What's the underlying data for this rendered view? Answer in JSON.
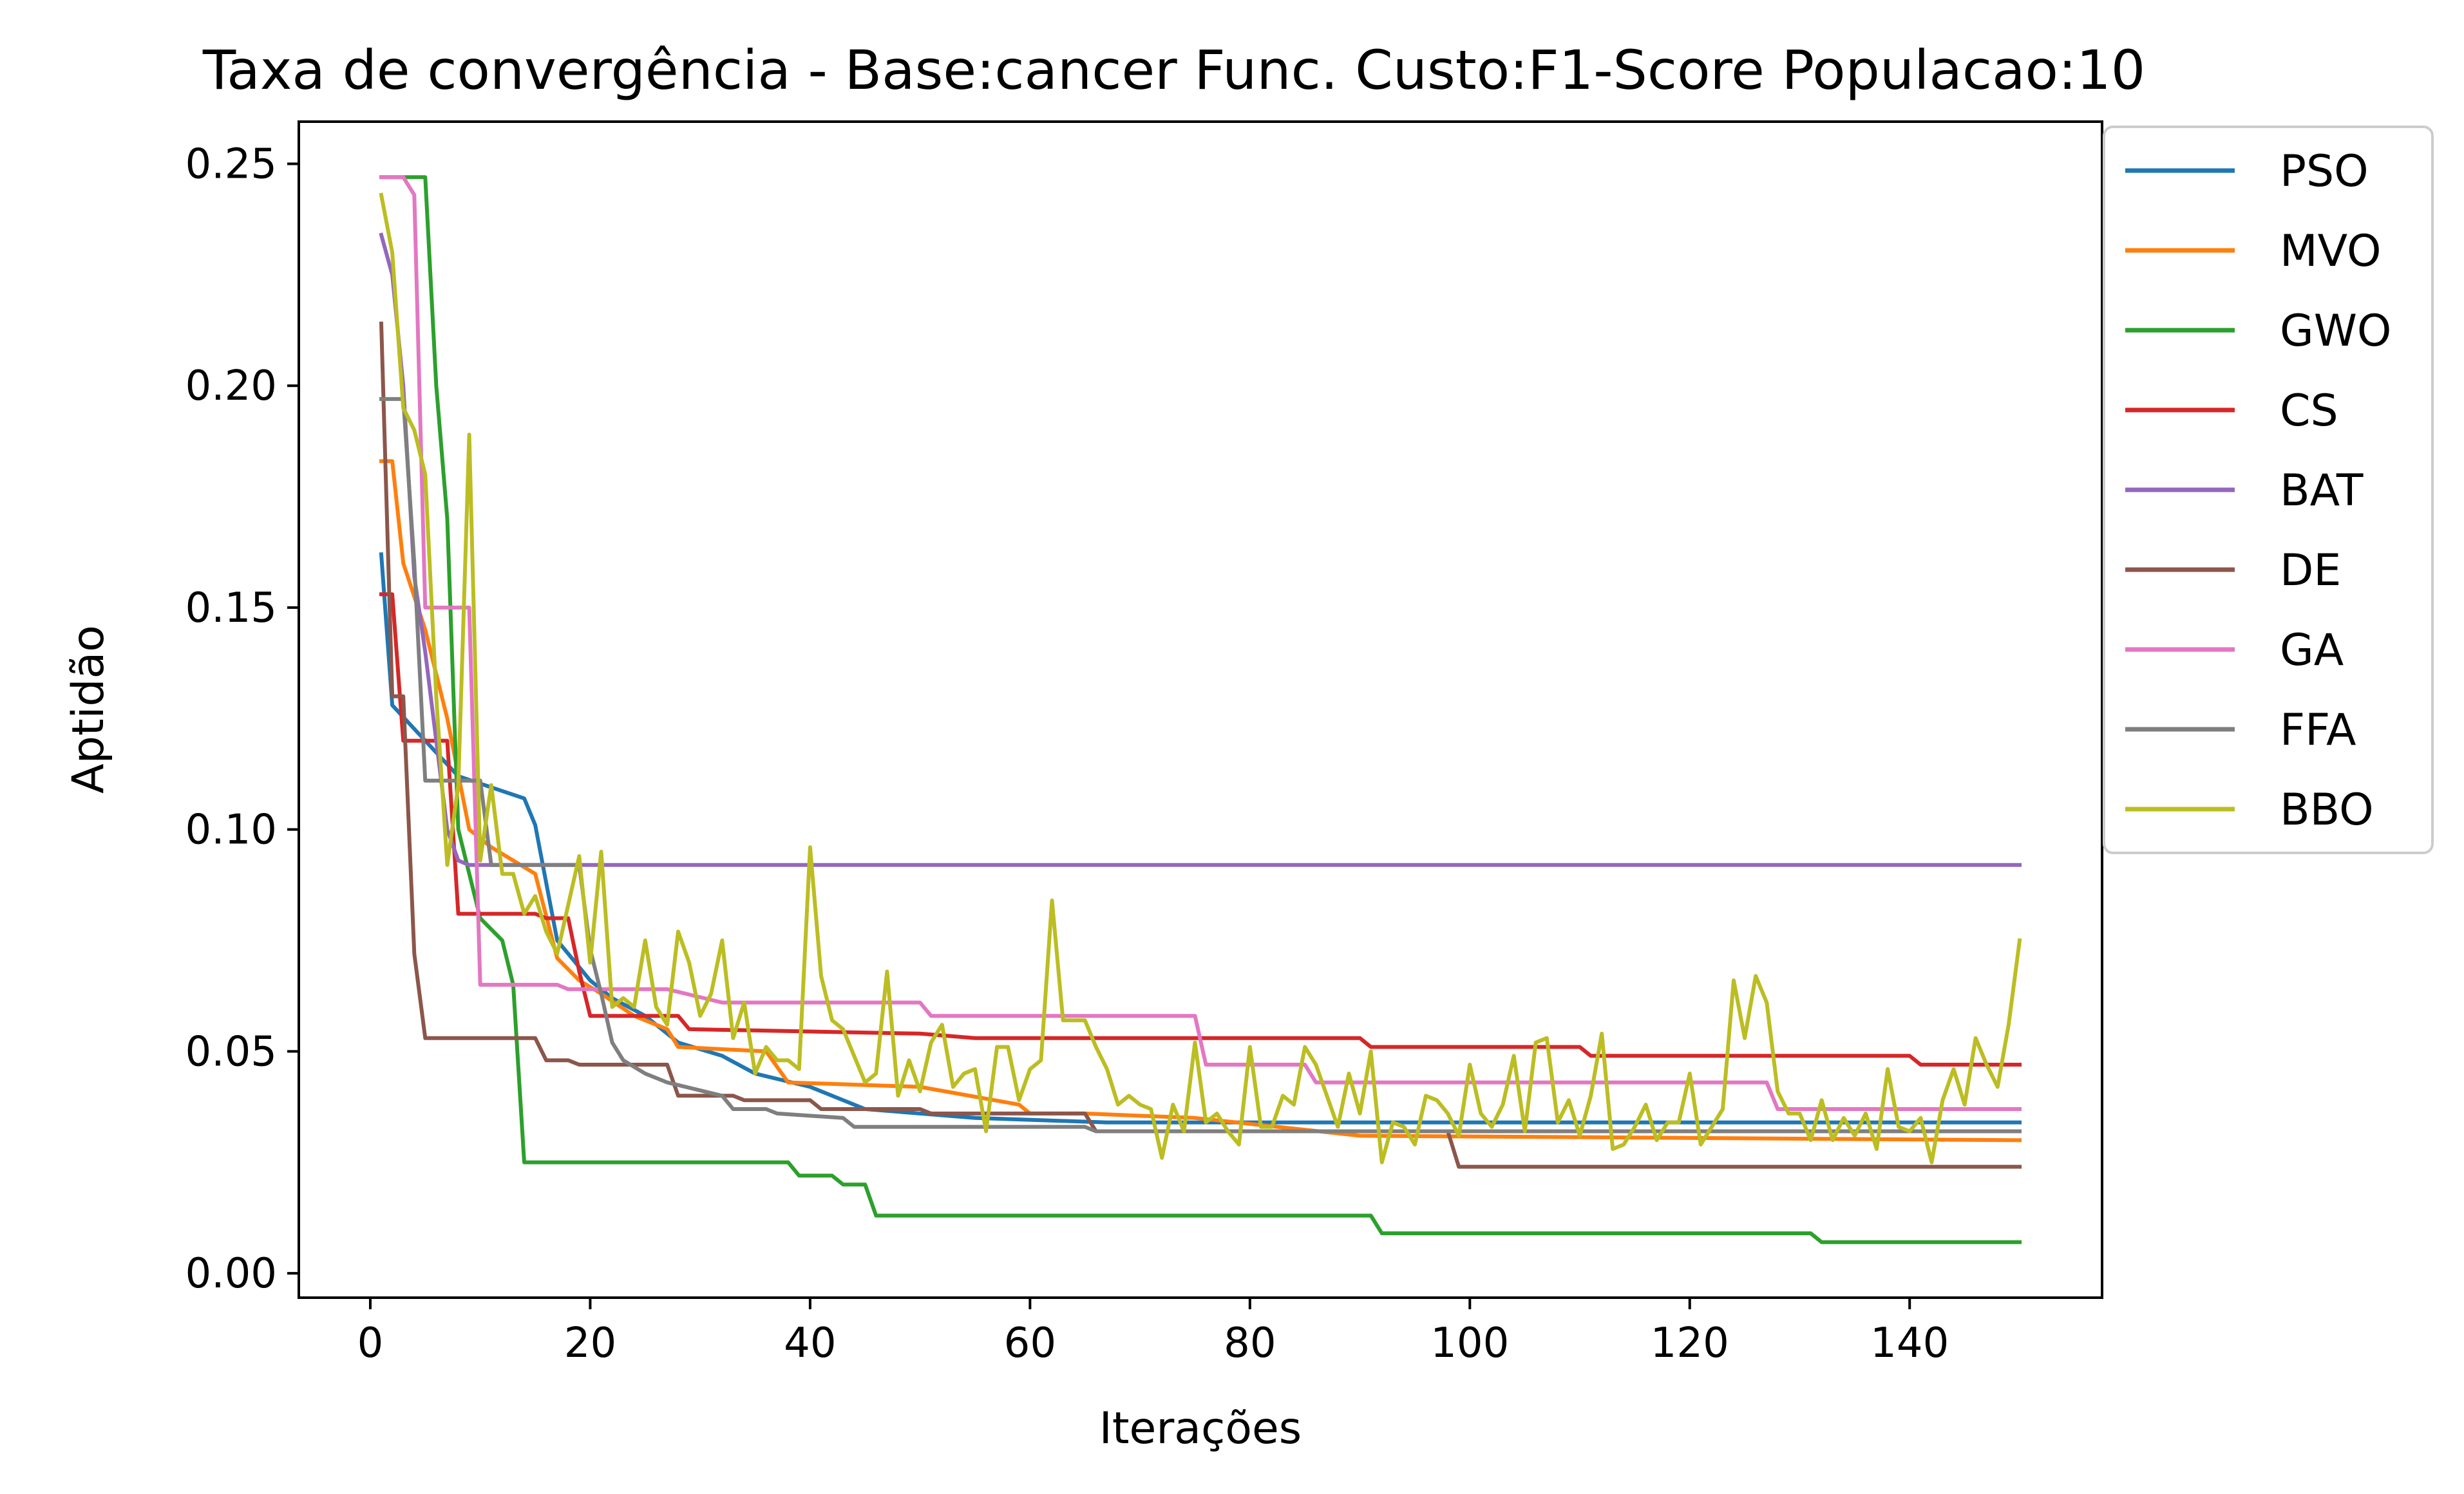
{
  "chart_data": {
    "type": "line",
    "title": "Taxa de convergência - Base:cancer Func. Custo:F1-Score Populacao:10",
    "xlabel": "Iterações",
    "ylabel": "Aptidão",
    "xlim": [
      -6.5,
      157.5
    ],
    "ylim": [
      -0.0055,
      0.2595
    ],
    "xticks": [
      0,
      20,
      40,
      60,
      80,
      100,
      120,
      140
    ],
    "xtick_labels": [
      "0",
      "20",
      "40",
      "60",
      "80",
      "100",
      "120",
      "140"
    ],
    "yticks": [
      0.0,
      0.05,
      0.1,
      0.15,
      0.2,
      0.25
    ],
    "ytick_labels": [
      "0.00",
      "0.05",
      "0.10",
      "0.15",
      "0.20",
      "0.25"
    ],
    "grid": false,
    "legend_position": "outside-upper-right",
    "series": [
      {
        "name": "PSO",
        "color": "#1f77b4",
        "points": [
          [
            1,
            0.162
          ],
          [
            2,
            0.128
          ],
          [
            8,
            0.112
          ],
          [
            14,
            0.107
          ],
          [
            15,
            0.101
          ],
          [
            16,
            0.088
          ],
          [
            17,
            0.075
          ],
          [
            18,
            0.072
          ],
          [
            20,
            0.066
          ],
          [
            22,
            0.062
          ],
          [
            25,
            0.058
          ],
          [
            28,
            0.052
          ],
          [
            32,
            0.049
          ],
          [
            35,
            0.045
          ],
          [
            40,
            0.042
          ],
          [
            45,
            0.037
          ],
          [
            50,
            0.036
          ],
          [
            55,
            0.035
          ],
          [
            67,
            0.034
          ],
          [
            150,
            0.034
          ]
        ]
      },
      {
        "name": "MVO",
        "color": "#ff7f0e",
        "points": [
          [
            1,
            0.183
          ],
          [
            2,
            0.183
          ],
          [
            3,
            0.16
          ],
          [
            5,
            0.145
          ],
          [
            7,
            0.125
          ],
          [
            9,
            0.1
          ],
          [
            11,
            0.096
          ],
          [
            15,
            0.09
          ],
          [
            17,
            0.071
          ],
          [
            19,
            0.066
          ],
          [
            21,
            0.063
          ],
          [
            24,
            0.058
          ],
          [
            27,
            0.055
          ],
          [
            28,
            0.051
          ],
          [
            36,
            0.05
          ],
          [
            38,
            0.043
          ],
          [
            50,
            0.042
          ],
          [
            59,
            0.038
          ],
          [
            60,
            0.036
          ],
          [
            65,
            0.036
          ],
          [
            75,
            0.035
          ],
          [
            90,
            0.031
          ],
          [
            150,
            0.03
          ]
        ]
      },
      {
        "name": "GWO",
        "color": "#2ca02c",
        "points": [
          [
            1,
            0.247
          ],
          [
            5,
            0.247
          ],
          [
            6,
            0.2
          ],
          [
            7,
            0.17
          ],
          [
            8,
            0.1
          ],
          [
            10,
            0.08
          ],
          [
            12,
            0.075
          ],
          [
            13,
            0.065
          ],
          [
            14,
            0.025
          ],
          [
            38,
            0.025
          ],
          [
            39,
            0.022
          ],
          [
            42,
            0.022
          ],
          [
            43,
            0.02
          ],
          [
            45,
            0.02
          ],
          [
            46,
            0.013
          ],
          [
            91,
            0.013
          ],
          [
            92,
            0.009
          ],
          [
            131,
            0.009
          ],
          [
            132,
            0.007
          ],
          [
            150,
            0.007
          ]
        ]
      },
      {
        "name": "CS",
        "color": "#d62728",
        "points": [
          [
            1,
            0.153
          ],
          [
            2,
            0.153
          ],
          [
            3,
            0.12
          ],
          [
            7,
            0.12
          ],
          [
            8,
            0.081
          ],
          [
            15,
            0.081
          ],
          [
            16,
            0.08
          ],
          [
            18,
            0.08
          ],
          [
            19,
            0.068
          ],
          [
            20,
            0.058
          ],
          [
            28,
            0.058
          ],
          [
            29,
            0.055
          ],
          [
            50,
            0.054
          ],
          [
            55,
            0.053
          ],
          [
            90,
            0.053
          ],
          [
            91,
            0.051
          ],
          [
            110,
            0.051
          ],
          [
            111,
            0.049
          ],
          [
            140,
            0.049
          ],
          [
            141,
            0.047
          ],
          [
            150,
            0.047
          ]
        ]
      },
      {
        "name": "BAT",
        "color": "#9467bd",
        "points": [
          [
            1,
            0.234
          ],
          [
            2,
            0.225
          ],
          [
            3,
            0.2
          ],
          [
            4,
            0.157
          ],
          [
            5,
            0.14
          ],
          [
            6,
            0.12
          ],
          [
            7,
            0.1
          ],
          [
            8,
            0.093
          ],
          [
            9,
            0.092
          ],
          [
            150,
            0.092
          ]
        ]
      },
      {
        "name": "DE",
        "color": "#8c564b",
        "points": [
          [
            1,
            0.214
          ],
          [
            2,
            0.13
          ],
          [
            3,
            0.13
          ],
          [
            4,
            0.072
          ],
          [
            5,
            0.053
          ],
          [
            15,
            0.053
          ],
          [
            16,
            0.048
          ],
          [
            18,
            0.048
          ],
          [
            19,
            0.047
          ],
          [
            27,
            0.047
          ],
          [
            28,
            0.04
          ],
          [
            33,
            0.04
          ],
          [
            34,
            0.039
          ],
          [
            40,
            0.039
          ],
          [
            41,
            0.037
          ],
          [
            50,
            0.037
          ],
          [
            51,
            0.036
          ],
          [
            65,
            0.036
          ],
          [
            66,
            0.032
          ],
          [
            98,
            0.032
          ],
          [
            99,
            0.024
          ],
          [
            150,
            0.024
          ]
        ]
      },
      {
        "name": "GA",
        "color": "#e377c2",
        "points": [
          [
            1,
            0.247
          ],
          [
            3,
            0.247
          ],
          [
            4,
            0.243
          ],
          [
            5,
            0.15
          ],
          [
            9,
            0.15
          ],
          [
            10,
            0.065
          ],
          [
            17,
            0.065
          ],
          [
            18,
            0.064
          ],
          [
            27,
            0.064
          ],
          [
            32,
            0.061
          ],
          [
            50,
            0.061
          ],
          [
            51,
            0.058
          ],
          [
            75,
            0.058
          ],
          [
            76,
            0.047
          ],
          [
            85,
            0.047
          ],
          [
            86,
            0.043
          ],
          [
            127,
            0.043
          ],
          [
            128,
            0.037
          ],
          [
            150,
            0.037
          ]
        ]
      },
      {
        "name": "FFA",
        "color": "#7f7f7f",
        "points": [
          [
            1,
            0.197
          ],
          [
            3,
            0.197
          ],
          [
            4,
            0.16
          ],
          [
            5,
            0.111
          ],
          [
            10,
            0.111
          ],
          [
            11,
            0.092
          ],
          [
            19,
            0.092
          ],
          [
            20,
            0.073
          ],
          [
            21,
            0.063
          ],
          [
            22,
            0.052
          ],
          [
            23,
            0.048
          ],
          [
            25,
            0.045
          ],
          [
            27,
            0.043
          ],
          [
            32,
            0.04
          ],
          [
            33,
            0.037
          ],
          [
            36,
            0.037
          ],
          [
            37,
            0.036
          ],
          [
            43,
            0.035
          ],
          [
            44,
            0.033
          ],
          [
            65,
            0.033
          ],
          [
            66,
            0.032
          ],
          [
            150,
            0.032
          ]
        ]
      },
      {
        "name": "BBO",
        "color": "#bcbd22",
        "points": [
          [
            1,
            0.243
          ],
          [
            2,
            0.23
          ],
          [
            3,
            0.195
          ],
          [
            4,
            0.19
          ],
          [
            5,
            0.18
          ],
          [
            6,
            0.13
          ],
          [
            7,
            0.092
          ],
          [
            8,
            0.11
          ],
          [
            9,
            0.189
          ],
          [
            10,
            0.093
          ],
          [
            11,
            0.11
          ],
          [
            12,
            0.09
          ],
          [
            13,
            0.09
          ],
          [
            14,
            0.081
          ],
          [
            15,
            0.085
          ],
          [
            16,
            0.077
          ],
          [
            17,
            0.072
          ],
          [
            18,
            0.083
          ],
          [
            19,
            0.094
          ],
          [
            20,
            0.07
          ],
          [
            21,
            0.095
          ],
          [
            22,
            0.06
          ],
          [
            23,
            0.062
          ],
          [
            24,
            0.06
          ],
          [
            25,
            0.075
          ],
          [
            26,
            0.06
          ],
          [
            27,
            0.056
          ],
          [
            28,
            0.077
          ],
          [
            29,
            0.07
          ],
          [
            30,
            0.058
          ],
          [
            31,
            0.063
          ],
          [
            32,
            0.075
          ],
          [
            33,
            0.053
          ],
          [
            34,
            0.061
          ],
          [
            35,
            0.045
          ],
          [
            36,
            0.051
          ],
          [
            37,
            0.048
          ],
          [
            38,
            0.048
          ],
          [
            39,
            0.046
          ],
          [
            40,
            0.096
          ],
          [
            41,
            0.067
          ],
          [
            42,
            0.057
          ],
          [
            43,
            0.055
          ],
          [
            44,
            0.049
          ],
          [
            45,
            0.043
          ],
          [
            46,
            0.045
          ],
          [
            47,
            0.068
          ],
          [
            48,
            0.04
          ],
          [
            49,
            0.048
          ],
          [
            50,
            0.041
          ],
          [
            51,
            0.052
          ],
          [
            52,
            0.056
          ],
          [
            53,
            0.042
          ],
          [
            54,
            0.045
          ],
          [
            55,
            0.046
          ],
          [
            56,
            0.032
          ],
          [
            57,
            0.051
          ],
          [
            58,
            0.051
          ],
          [
            59,
            0.039
          ],
          [
            60,
            0.046
          ],
          [
            61,
            0.048
          ],
          [
            62,
            0.084
          ],
          [
            63,
            0.057
          ],
          [
            64,
            0.057
          ],
          [
            65,
            0.057
          ],
          [
            66,
            0.051
          ],
          [
            67,
            0.046
          ],
          [
            68,
            0.038
          ],
          [
            69,
            0.04
          ],
          [
            70,
            0.038
          ],
          [
            71,
            0.037
          ],
          [
            72,
            0.026
          ],
          [
            73,
            0.038
          ],
          [
            74,
            0.032
          ],
          [
            75,
            0.052
          ],
          [
            76,
            0.034
          ],
          [
            77,
            0.036
          ],
          [
            78,
            0.032
          ],
          [
            79,
            0.029
          ],
          [
            80,
            0.051
          ],
          [
            81,
            0.033
          ],
          [
            82,
            0.033
          ],
          [
            83,
            0.04
          ],
          [
            84,
            0.038
          ],
          [
            85,
            0.051
          ],
          [
            86,
            0.047
          ],
          [
            87,
            0.04
          ],
          [
            88,
            0.033
          ],
          [
            89,
            0.045
          ],
          [
            90,
            0.036
          ],
          [
            91,
            0.05
          ],
          [
            92,
            0.025
          ],
          [
            93,
            0.034
          ],
          [
            94,
            0.033
          ],
          [
            95,
            0.029
          ],
          [
            96,
            0.04
          ],
          [
            97,
            0.039
          ],
          [
            98,
            0.036
          ],
          [
            99,
            0.031
          ],
          [
            100,
            0.047
          ],
          [
            101,
            0.036
          ],
          [
            102,
            0.033
          ],
          [
            103,
            0.038
          ],
          [
            104,
            0.049
          ],
          [
            105,
            0.032
          ],
          [
            106,
            0.052
          ],
          [
            107,
            0.053
          ],
          [
            108,
            0.034
          ],
          [
            109,
            0.039
          ],
          [
            110,
            0.031
          ],
          [
            111,
            0.04
          ],
          [
            112,
            0.054
          ],
          [
            113,
            0.028
          ],
          [
            114,
            0.029
          ],
          [
            115,
            0.033
          ],
          [
            116,
            0.038
          ],
          [
            117,
            0.03
          ],
          [
            118,
            0.034
          ],
          [
            119,
            0.034
          ],
          [
            120,
            0.045
          ],
          [
            121,
            0.029
          ],
          [
            122,
            0.033
          ],
          [
            123,
            0.037
          ],
          [
            124,
            0.066
          ],
          [
            125,
            0.053
          ],
          [
            126,
            0.067
          ],
          [
            127,
            0.061
          ],
          [
            128,
            0.041
          ],
          [
            129,
            0.036
          ],
          [
            130,
            0.036
          ],
          [
            131,
            0.03
          ],
          [
            132,
            0.039
          ],
          [
            133,
            0.03
          ],
          [
            134,
            0.035
          ],
          [
            135,
            0.031
          ],
          [
            136,
            0.036
          ],
          [
            137,
            0.028
          ],
          [
            138,
            0.046
          ],
          [
            139,
            0.033
          ],
          [
            140,
            0.032
          ],
          [
            141,
            0.035
          ],
          [
            142,
            0.025
          ],
          [
            143,
            0.039
          ],
          [
            144,
            0.046
          ],
          [
            145,
            0.038
          ],
          [
            146,
            0.053
          ],
          [
            147,
            0.047
          ],
          [
            148,
            0.042
          ],
          [
            149,
            0.056
          ],
          [
            150,
            0.075
          ]
        ]
      }
    ]
  }
}
